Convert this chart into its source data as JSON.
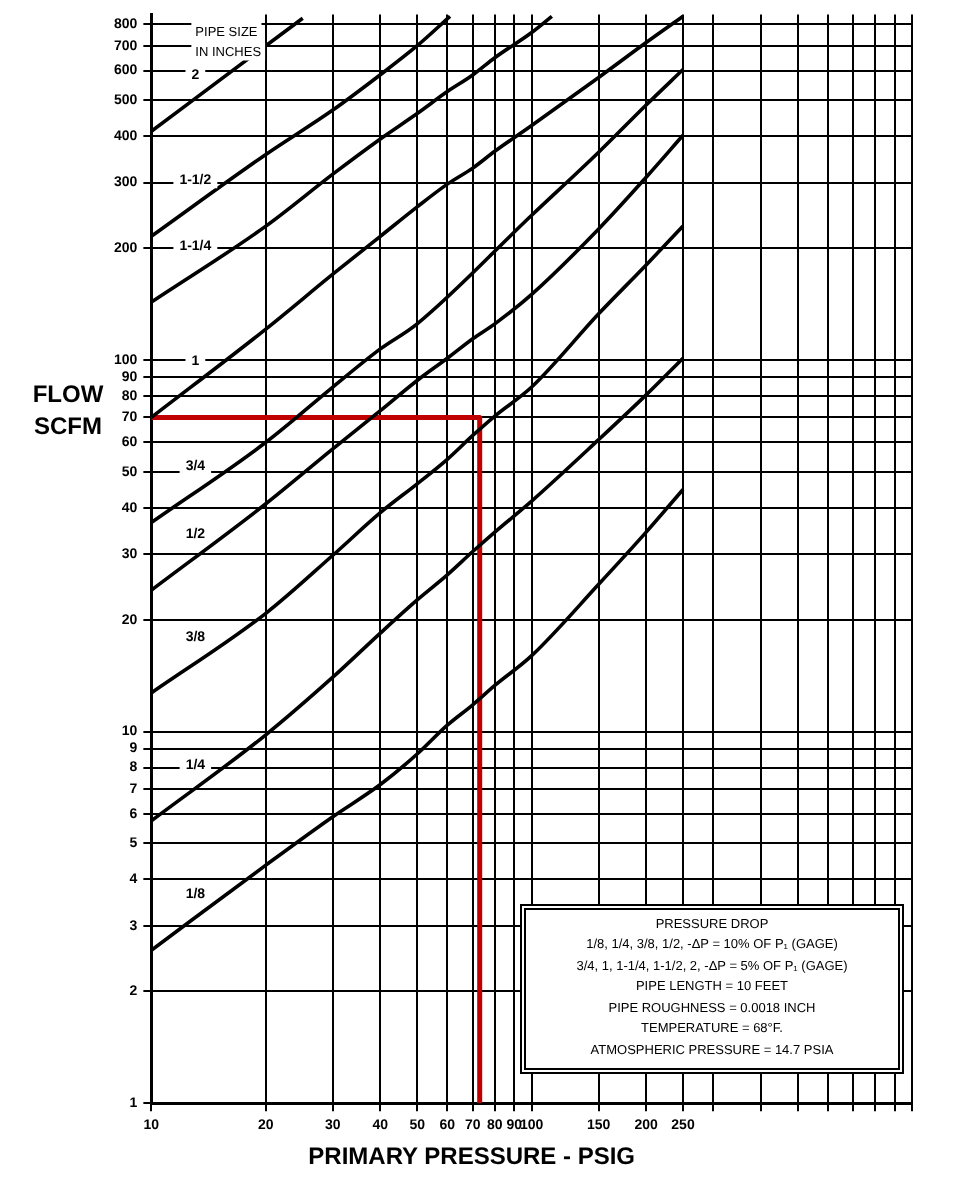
{
  "chart_data": {
    "type": "line",
    "xlabel": "PRIMARY PRESSURE - PSIG",
    "ylabel": "FLOW SCFM",
    "log": "xy",
    "grid": true,
    "legend": false,
    "marker": "none",
    "line_style": "solid",
    "xlim": [
      10,
      1000
    ],
    "ylim": [
      1,
      850
    ],
    "xticks": [
      10,
      20,
      30,
      40,
      50,
      60,
      70,
      80,
      90,
      100,
      150,
      200,
      250,
      {
        "value": 300,
        "label": null
      },
      {
        "value": 400,
        "label": null
      },
      {
        "value": 500,
        "label": null
      },
      {
        "value": 600,
        "label": null
      },
      {
        "value": 700,
        "label": null
      },
      {
        "value": 800,
        "label": null
      },
      {
        "value": 900,
        "label": null
      },
      {
        "value": 1000,
        "label": null
      }
    ],
    "yticks": [
      1,
      2,
      3,
      4,
      5,
      6,
      7,
      8,
      9,
      10,
      20,
      30,
      40,
      50,
      60,
      70,
      80,
      90,
      100,
      200,
      300,
      400,
      500,
      600,
      700,
      800
    ],
    "series": [
      {
        "name": "2",
        "color": "#000000",
        "x": [
          10,
          20,
          25
        ],
        "values": [
          412,
          700,
          830
        ]
      },
      {
        "name": "1-1/2",
        "color": "#000000",
        "x": [
          10,
          20,
          30,
          40,
          50,
          61
        ],
        "values": [
          215,
          357,
          470,
          585,
          700,
          840
        ]
      },
      {
        "name": "1-1/4",
        "color": "#000000",
        "x": [
          10,
          20,
          30,
          40,
          50,
          60,
          70,
          80,
          100,
          113
        ],
        "values": [
          143,
          229,
          316,
          393,
          460,
          527,
          584,
          650,
          760,
          840
        ]
      },
      {
        "name": "1",
        "color": "#000000",
        "x": [
          10,
          20,
          30,
          40,
          50,
          60,
          70,
          80,
          100,
          150,
          200,
          250
        ],
        "values": [
          70,
          121,
          170,
          215,
          258,
          297,
          328,
          364,
          427,
          575,
          714,
          840
        ]
      },
      {
        "name": "3/4",
        "color": "#000000",
        "x": [
          10,
          20,
          30,
          40,
          50,
          100,
          150,
          200,
          250
        ],
        "values": [
          36.5,
          60,
          84.5,
          107,
          125,
          245,
          362,
          485,
          604
        ]
      },
      {
        "name": "1/2",
        "color": "#000000",
        "x": [
          10,
          20,
          30,
          40,
          50,
          60,
          70,
          80,
          100,
          150,
          200,
          250
        ],
        "values": [
          24,
          41,
          57.6,
          73,
          88,
          101,
          114,
          125,
          150,
          225,
          310,
          402
        ]
      },
      {
        "name": "3/8",
        "color": "#000000",
        "x": [
          10,
          20,
          30,
          40,
          50,
          60,
          70,
          80,
          100,
          150,
          200,
          250
        ],
        "values": [
          12.7,
          20.8,
          29.8,
          38.8,
          46.4,
          54,
          62.6,
          70.6,
          84.5,
          133,
          180,
          229
        ]
      },
      {
        "name": "1/4",
        "color": "#000000",
        "x": [
          10,
          20,
          30,
          40,
          50,
          60,
          70,
          80,
          100,
          150,
          200,
          250
        ],
        "values": [
          5.75,
          9.8,
          14,
          18.4,
          22.6,
          26.4,
          30.5,
          34.4,
          41.7,
          61,
          80.5,
          101
        ]
      },
      {
        "name": "1/8",
        "color": "#000000",
        "x": [
          10,
          20,
          30,
          40,
          50,
          60,
          70,
          80,
          100,
          150,
          200,
          250
        ],
        "values": [
          2.58,
          4.37,
          5.9,
          7.2,
          8.7,
          10.4,
          11.8,
          13.3,
          16,
          24.9,
          34.4,
          44.8
        ]
      },
      {
        "color": "#c00000",
        "x": [
          10,
          73,
          73
        ],
        "values": [
          70,
          70,
          1
        ]
      }
    ],
    "annotations": [
      "PIPE SIZE IN INCHES",
      "PRESSURE DROP",
      "1/8, 1/4, 3/8, 1/2, -ΔP = 10% OF P₁ (GAGE)",
      "3/4, 1, 1-1/4, 1-1/2, 2, -ΔP = 5% OF P₁ (GAGE)",
      "PIPE LENGTH = 10 FEET",
      "PIPE ROUGHNESS = 0.0018 INCH",
      "TEMPERATURE = 68°F.",
      "ATMOSPHERIC PRESSURE = 14.7 PSIA"
    ]
  }
}
